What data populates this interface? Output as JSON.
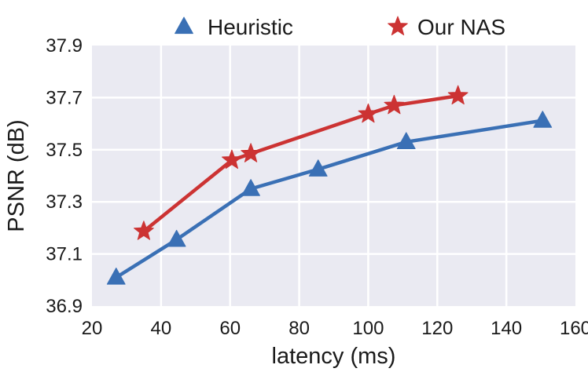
{
  "chart_data": {
    "type": "line",
    "xlabel": "latency (ms)",
    "ylabel": "PSNR (dB)",
    "xlim": [
      20,
      160
    ],
    "ylim": [
      36.9,
      37.9
    ],
    "xticks": [
      "20",
      "40",
      "60",
      "80",
      "100",
      "120",
      "140",
      "160"
    ],
    "yticks": [
      "36.9",
      "37.1",
      "37.3",
      "37.5",
      "37.7",
      "37.9"
    ],
    "grid": true,
    "legend_position": "top",
    "series": [
      {
        "name": "Heuristic",
        "marker": "triangle",
        "color": "#3a70b5",
        "points": [
          [
            27,
            37.01
          ],
          [
            44.5,
            37.155
          ],
          [
            66,
            37.35
          ],
          [
            85.5,
            37.425
          ],
          [
            111,
            37.53
          ],
          [
            150.5,
            37.612
          ]
        ]
      },
      {
        "name": "Our NAS",
        "marker": "star",
        "color": "#cc3333",
        "points": [
          [
            35,
            37.187
          ],
          [
            60.5,
            37.46
          ],
          [
            66,
            37.485
          ],
          [
            100,
            37.637
          ],
          [
            107.5,
            37.67
          ],
          [
            126,
            37.707
          ]
        ]
      }
    ]
  }
}
